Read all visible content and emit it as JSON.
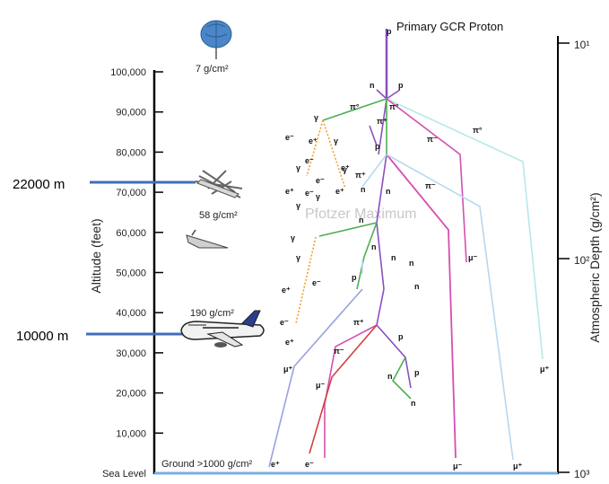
{
  "title": "Primary GCR Proton",
  "left_axis": {
    "label": "Altitude (feet)",
    "ticks": [
      "100,000",
      "90,000",
      "80,000",
      "70,000",
      "60,000",
      "50,000",
      "40,000",
      "30,000",
      "20,000",
      "10,000",
      "Sea Level"
    ]
  },
  "right_axis": {
    "label": "Atmospheric Depth (g/cm²)",
    "ticks": [
      "10¹",
      "10²",
      "10³"
    ]
  },
  "annotations": {
    "balloon_depth": "7 g/cm²",
    "plane_depth": "58 g/cm²",
    "airliner_depth": "190 g/cm²",
    "ground": "Ground  >1000 g/cm²",
    "pfotzer": "Pfotzer Maximum",
    "alt_22000": "22000 m",
    "alt_10000": "10000 m"
  },
  "particles": {
    "p": "p",
    "n": "n",
    "pi0": "π°",
    "pi_plus": "π⁺",
    "pi_minus": "π⁻",
    "gamma": "γ",
    "e_minus": "e⁻",
    "e_plus": "e⁺",
    "mu_minus": "μ⁻",
    "mu_plus": "μ⁺"
  },
  "colors": {
    "horizontal_marker": "#3f6fb5",
    "ground_line": "#7ab0e0",
    "proton_track": "#8a4fc0",
    "pion_track": "#4caf50",
    "muon_minus": "#d44fb0",
    "muon_plus": "#9ec8e8",
    "electron": "#d44040",
    "shower": "#f0a030"
  },
  "icons": [
    "balloon-icon",
    "spyplane-icon",
    "concorde-icon",
    "airliner-icon"
  ]
}
